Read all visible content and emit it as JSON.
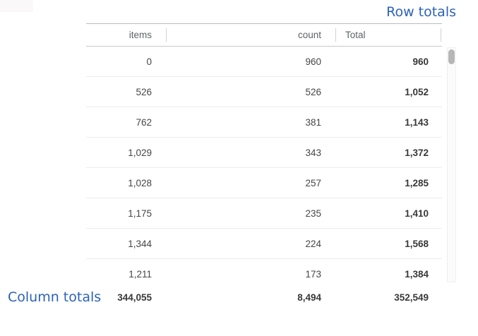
{
  "links": {
    "row_totals": "Row totals",
    "column_totals": "Column totals"
  },
  "table": {
    "columns": [
      {
        "label": "items"
      },
      {
        "label": "count"
      },
      {
        "label": "Total"
      }
    ],
    "rows": [
      {
        "items": "0",
        "count": "960",
        "total": "960"
      },
      {
        "items": "526",
        "count": "526",
        "total": "1,052"
      },
      {
        "items": "762",
        "count": "381",
        "total": "1,143"
      },
      {
        "items": "1,029",
        "count": "343",
        "total": "1,372"
      },
      {
        "items": "1,028",
        "count": "257",
        "total": "1,285"
      },
      {
        "items": "1,175",
        "count": "235",
        "total": "1,410"
      },
      {
        "items": "1,344",
        "count": "224",
        "total": "1,568"
      },
      {
        "items": "1,211",
        "count": "173",
        "total": "1,384"
      }
    ],
    "column_totals": {
      "items": "344,055",
      "count": "8,494",
      "total": "352,549"
    }
  },
  "colors": {
    "link_blue": "#2c62b9",
    "header_text": "#5d6467",
    "body_text": "#464646",
    "bold_text": "#383838",
    "row_separator": "#ececec",
    "scrollbar_thumb": "#b6b6b6"
  }
}
